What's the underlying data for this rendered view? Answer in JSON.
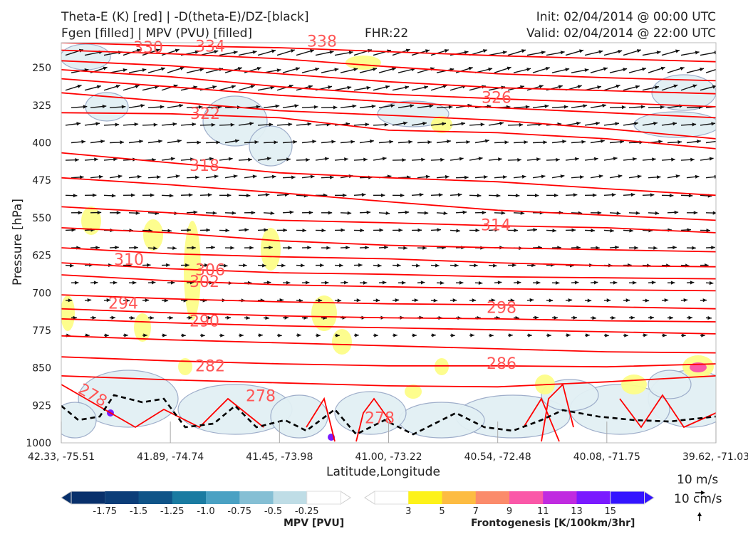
{
  "header": {
    "title_line1": "Theta-E (K) [red] | -D(theta-E)/DZ-[black]",
    "title_line2": "Fgen [filled] | MPV (PVU) [filled]",
    "fhr": "FHR:22",
    "init": "Init: 02/04/2014 @ 00:00 UTC",
    "valid": "Valid: 02/04/2014 @ 22:00 UTC"
  },
  "chart_data": {
    "type": "cross-section",
    "xlabel": "Latitude,Longitude",
    "ylabel": "Pressure [hPa]",
    "ylim": [
      1000,
      200
    ],
    "x_ticks": [
      "42.33, -75.51",
      "41.89, -74.74",
      "41.45, -73.98",
      "41.00, -73.22",
      "40.54, -72.48",
      "40.08, -71.75",
      "39.62, -71.03"
    ],
    "y_ticks": [
      250,
      325,
      400,
      475,
      550,
      625,
      700,
      775,
      850,
      925,
      1000
    ],
    "theta_e_contours": [
      {
        "label": "330",
        "pressure": 210
      },
      {
        "label": "334",
        "pressure": 208
      },
      {
        "label": "338",
        "pressure": 198
      },
      {
        "label": "326",
        "pressure": 310
      },
      {
        "label": "322",
        "pressure": 342
      },
      {
        "label": "318",
        "pressure": 446
      },
      {
        "label": "314",
        "pressure": 565
      },
      {
        "label": "310",
        "pressure": 634
      },
      {
        "label": "306",
        "pressure": 655
      },
      {
        "label": "302",
        "pressure": 678
      },
      {
        "label": "294",
        "pressure": 722
      },
      {
        "label": "298",
        "pressure": 730
      },
      {
        "label": "290",
        "pressure": 757
      },
      {
        "label": "286",
        "pressure": 842
      },
      {
        "label": "282",
        "pressure": 847
      },
      {
        "label": "278",
        "pressure": 905
      },
      {
        "label": "278",
        "pressure": 907
      },
      {
        "label": "278",
        "pressure": 951
      }
    ],
    "colors": {
      "theta_e": "#ff0000",
      "label": "#ff5555",
      "vectors": "#111111",
      "mpv_outline": "#9aaac8",
      "mpv_fill": "#e2f0f4",
      "fgen_fill": "#fdfd88"
    },
    "reference_vectors": {
      "horizontal": "10 m/s",
      "vertical": "10 cm/s"
    },
    "mpv_colorbar": {
      "title": "MPV [PVU]",
      "ticks": [
        "-1.75",
        "-1.5",
        "-1.25",
        "-1.0",
        "-0.75",
        "-0.5",
        "-0.25"
      ],
      "colors": [
        "#08306b",
        "#0b3d78",
        "#0f5488",
        "#1a7ba1",
        "#4aa1c3",
        "#85bfd4",
        "#bfdde6",
        "#ffffff"
      ]
    },
    "fgen_colorbar": {
      "title": "Frontogenesis [K/100km/3hr]",
      "ticks": [
        "3",
        "5",
        "7",
        "9",
        "11",
        "13",
        "15"
      ],
      "colors": [
        "#ffffff",
        "#fdf21a",
        "#fdbc42",
        "#fb8b6b",
        "#fa58a8",
        "#c02be0",
        "#7a1aff",
        "#3314ff"
      ]
    }
  }
}
